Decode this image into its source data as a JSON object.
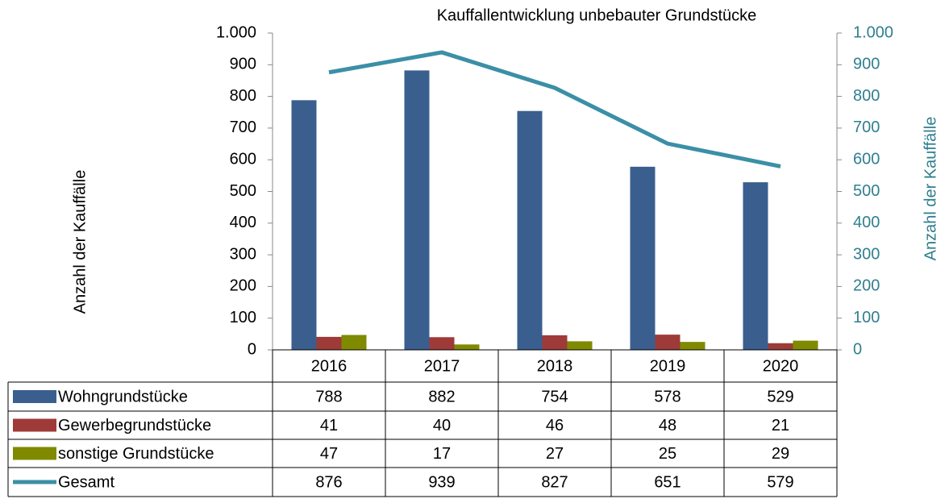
{
  "chart_data": {
    "type": "bar",
    "title": "Kauffallentwicklung unbebauter Grundstücke",
    "ylabel": "Anzahl der Kauffälle",
    "y2label": "Anzahl der Kauffälle",
    "categories": [
      "2016",
      "2017",
      "2018",
      "2019",
      "2020"
    ],
    "series": [
      {
        "name": "Wohngrundstücke",
        "color": "#3a5f8f",
        "values": [
          788,
          882,
          754,
          578,
          529
        ]
      },
      {
        "name": "Gewerbegrundstücke",
        "color": "#9e3b38",
        "values": [
          41,
          40,
          46,
          48,
          21
        ]
      },
      {
        "name": "sonstige Grundstücke",
        "color": "#7f8a00",
        "values": [
          47,
          17,
          27,
          25,
          29
        ]
      },
      {
        "name": "Gesamt",
        "color": "#3b8fa6",
        "type": "line",
        "axis": "y2",
        "values": [
          876,
          939,
          827,
          651,
          579
        ]
      }
    ],
    "ylim": [
      0,
      1000
    ],
    "yticks": [
      0,
      100,
      200,
      300,
      400,
      500,
      600,
      700,
      800,
      900,
      {
        "value": 1000,
        "label": "1.000"
      }
    ],
    "y2lim": [
      0,
      1000
    ],
    "y2ticks": [
      0,
      100,
      200,
      300,
      400,
      500,
      600,
      700,
      800,
      900,
      {
        "value": 1000,
        "label": "1.000"
      }
    ],
    "y2color": "#2f7f8f"
  }
}
